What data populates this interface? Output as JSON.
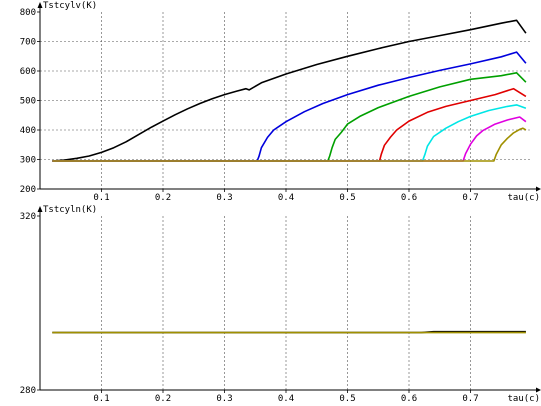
{
  "chart_data": [
    {
      "type": "line",
      "ylabel": "Tstcylv(K)",
      "xlabel": "tau(c)",
      "xlim": [
        0,
        0.8
      ],
      "ylim": [
        200,
        800
      ],
      "xticks": [
        "0.1",
        "0.2",
        "0.3",
        "0.4",
        "0.5",
        "0.6",
        "0.7"
      ],
      "yticks": [
        "200",
        "300",
        "400",
        "500",
        "600",
        "700",
        "800"
      ],
      "grid": true,
      "series": [
        {
          "color": "#000000",
          "x": [
            0.02,
            0.04,
            0.06,
            0.08,
            0.1,
            0.12,
            0.14,
            0.16,
            0.18,
            0.2,
            0.22,
            0.24,
            0.26,
            0.28,
            0.3,
            0.32,
            0.335,
            0.34,
            0.36,
            0.4,
            0.45,
            0.5,
            0.55,
            0.6,
            0.65,
            0.7,
            0.75,
            0.775,
            0.79
          ],
          "y": [
            295,
            298,
            304,
            312,
            324,
            340,
            360,
            384,
            408,
            430,
            452,
            472,
            490,
            506,
            520,
            532,
            540,
            536,
            560,
            590,
            622,
            650,
            676,
            700,
            720,
            740,
            762,
            772,
            728
          ]
        },
        {
          "color": "#0000dd",
          "x": [
            0.02,
            0.353,
            0.356,
            0.36,
            0.37,
            0.38,
            0.4,
            0.43,
            0.46,
            0.5,
            0.55,
            0.6,
            0.65,
            0.7,
            0.75,
            0.775,
            0.79
          ],
          "y": [
            295,
            295,
            310,
            340,
            375,
            400,
            428,
            462,
            490,
            520,
            552,
            578,
            602,
            624,
            648,
            664,
            626
          ]
        },
        {
          "color": "#00a000",
          "x": [
            0.02,
            0.468,
            0.471,
            0.475,
            0.48,
            0.49,
            0.5,
            0.52,
            0.55,
            0.6,
            0.65,
            0.7,
            0.75,
            0.775,
            0.79
          ],
          "y": [
            295,
            295,
            312,
            340,
            368,
            392,
            420,
            446,
            476,
            514,
            546,
            572,
            584,
            594,
            562
          ]
        },
        {
          "color": "#e00000",
          "x": [
            0.02,
            0.552,
            0.555,
            0.56,
            0.57,
            0.58,
            0.6,
            0.63,
            0.66,
            0.7,
            0.74,
            0.77,
            0.79
          ],
          "y": [
            295,
            295,
            318,
            348,
            376,
            400,
            430,
            460,
            480,
            500,
            520,
            540,
            514
          ]
        },
        {
          "color": "#00e6e6",
          "x": [
            0.02,
            0.622,
            0.626,
            0.63,
            0.64,
            0.66,
            0.68,
            0.7,
            0.73,
            0.76,
            0.775,
            0.79
          ],
          "y": [
            295,
            295,
            318,
            345,
            378,
            406,
            428,
            446,
            466,
            480,
            485,
            474
          ]
        },
        {
          "color": "#e000e0",
          "x": [
            0.02,
            0.688,
            0.692,
            0.7,
            0.71,
            0.72,
            0.74,
            0.76,
            0.78,
            0.79
          ],
          "y": [
            295,
            295,
            320,
            352,
            380,
            398,
            420,
            434,
            444,
            428
          ]
        },
        {
          "color": "#a09000",
          "x": [
            0.02,
            0.738,
            0.742,
            0.75,
            0.76,
            0.77,
            0.78,
            0.785,
            0.79
          ],
          "y": [
            295,
            295,
            318,
            350,
            372,
            390,
            402,
            406,
            400
          ]
        }
      ]
    },
    {
      "type": "line",
      "ylabel": "Tstcyln(K)",
      "xlabel": "tau(c)",
      "xlim": [
        0,
        0.8
      ],
      "ylim": [
        280,
        320
      ],
      "xticks": [
        "0.1",
        "0.2",
        "0.3",
        "0.4",
        "0.5",
        "0.6",
        "0.7"
      ],
      "yticks": [
        "280",
        "320"
      ],
      "grid": true,
      "series": [
        {
          "color": "#000000",
          "x": [
            0.02,
            0.62,
            0.64,
            0.79
          ],
          "y": [
            293.2,
            293.2,
            293.4,
            293.4
          ]
        },
        {
          "color": "#a09000",
          "x": [
            0.02,
            0.79
          ],
          "y": [
            293.2,
            293.2
          ]
        }
      ]
    }
  ]
}
